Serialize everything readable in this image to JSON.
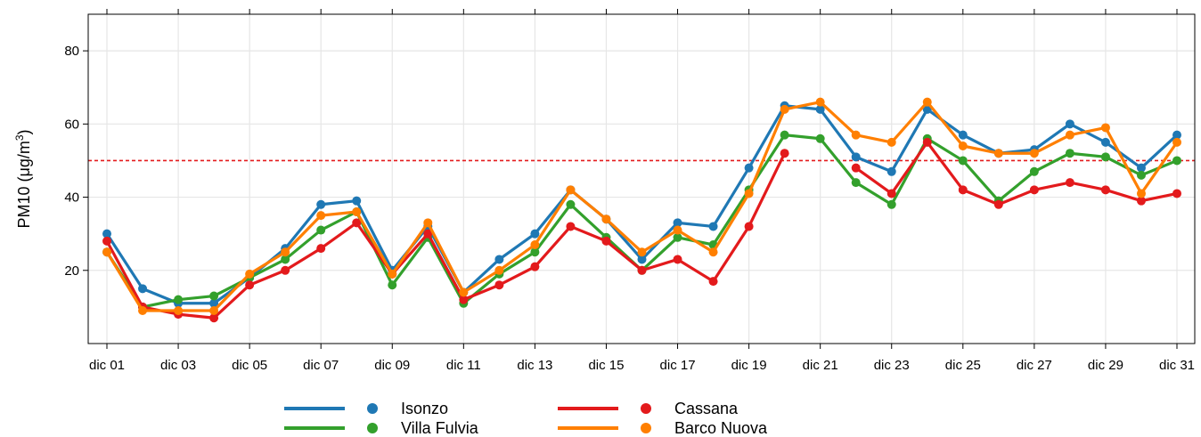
{
  "chart_data": {
    "type": "line",
    "ylabel": "PM10 (μg/m³)",
    "ylabel_main": "PM10 (",
    "ylabel_unit": "μg/m",
    "ylabel_sup": "3",
    "ylabel_close": ")",
    "ylim": [
      0,
      90
    ],
    "yticks": [
      20,
      40,
      60,
      80
    ],
    "x": [
      "dic 01",
      "dic 02",
      "dic 03",
      "dic 04",
      "dic 05",
      "dic 06",
      "dic 07",
      "dic 08",
      "dic 09",
      "dic 10",
      "dic 11",
      "dic 12",
      "dic 13",
      "dic 14",
      "dic 15",
      "dic 16",
      "dic 17",
      "dic 18",
      "dic 19",
      "dic 20",
      "dic 21",
      "dic 22",
      "dic 23",
      "dic 24",
      "dic 25",
      "dic 26",
      "dic 27",
      "dic 28",
      "dic 29",
      "dic 30",
      "dic 31"
    ],
    "xtick_labels": [
      "dic 01",
      "dic 03",
      "dic 05",
      "dic 07",
      "dic 09",
      "dic 11",
      "dic 13",
      "dic 15",
      "dic 17",
      "dic 19",
      "dic 21",
      "dic 23",
      "dic 25",
      "dic 27",
      "dic 29",
      "dic 31"
    ],
    "grid": true,
    "threshold": {
      "value": 50,
      "color": "#e41a1c",
      "style": "dashed"
    },
    "legend_position": "bottom",
    "series": [
      {
        "name": "Isonzo",
        "color": "#1f78b4",
        "values": [
          30,
          15,
          11,
          11,
          18,
          26,
          38,
          39,
          20,
          32,
          14,
          23,
          30,
          42,
          34,
          23,
          33,
          32,
          48,
          65,
          64,
          51,
          47,
          64,
          57,
          52,
          53,
          60,
          55,
          48,
          57
        ]
      },
      {
        "name": "Villa Fulvia",
        "color": "#33a02c",
        "values": [
          25,
          10,
          12,
          13,
          18,
          23,
          31,
          36,
          16,
          29,
          11,
          19,
          25,
          38,
          29,
          20,
          29,
          27,
          42,
          57,
          56,
          44,
          38,
          56,
          50,
          39,
          47,
          52,
          51,
          46,
          50
        ]
      },
      {
        "name": "Cassana",
        "color": "#e31a1c",
        "values": [
          28,
          10,
          8,
          7,
          16,
          20,
          26,
          33,
          19,
          30,
          12,
          16,
          21,
          32,
          28,
          20,
          23,
          17,
          32,
          52,
          null,
          48,
          41,
          55,
          42,
          38,
          42,
          44,
          42,
          39,
          41
        ]
      },
      {
        "name": "Barco Nuova",
        "color": "#ff7f00",
        "values": [
          25,
          9,
          9,
          9,
          19,
          25,
          35,
          36,
          19,
          33,
          14,
          20,
          27,
          42,
          34,
          25,
          31,
          25,
          41,
          64,
          66,
          57,
          55,
          66,
          54,
          52,
          52,
          57,
          59,
          41,
          55
        ]
      }
    ]
  }
}
